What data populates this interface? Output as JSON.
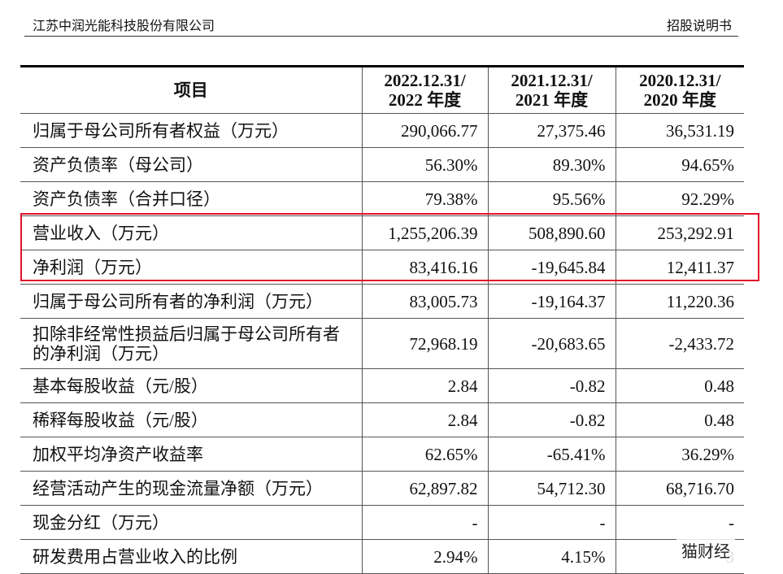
{
  "header": {
    "company": "江苏中润光能科技股份有限公司",
    "doc_type": "招股说明书"
  },
  "table": {
    "columns": [
      [
        "项目"
      ],
      [
        "2022.12.31/",
        "2022 年度"
      ],
      [
        "2021.12.31/",
        "2021 年度"
      ],
      [
        "2020.12.31/",
        "2020 年度"
      ]
    ],
    "rows": [
      [
        "归属于母公司所有者权益（万元）",
        "290,066.77",
        "27,375.46",
        "36,531.19"
      ],
      [
        "资产负债率（母公司）",
        "56.30%",
        "89.30%",
        "94.65%"
      ],
      [
        "资产负债率（合并口径）",
        "79.38%",
        "95.56%",
        "92.29%"
      ],
      [
        "营业收入（万元）",
        "1,255,206.39",
        "508,890.60",
        "253,292.91"
      ],
      [
        "净利润（万元）",
        "83,416.16",
        "-19,645.84",
        "12,411.37"
      ],
      [
        "归属于母公司所有者的净利润（万元）",
        "83,005.73",
        "-19,164.37",
        "11,220.36"
      ],
      [
        "扣除非经常性损益后归属于母公司所有者的净利润（万元）",
        "72,968.19",
        "-20,683.65",
        "-2,433.72"
      ],
      [
        "基本每股收益（元/股）",
        "2.84",
        "-0.82",
        "0.48"
      ],
      [
        "稀释每股收益（元/股）",
        "2.84",
        "-0.82",
        "0.48"
      ],
      [
        "加权平均净资产收益率",
        "62.65%",
        "-65.41%",
        "36.29%"
      ],
      [
        "经营活动产生的现金流量净额（万元）",
        "62,897.82",
        "54,712.30",
        "68,716.70"
      ],
      [
        "现金分红（万元）",
        "-",
        "-",
        "-"
      ],
      [
        "研发费用占营业收入的比例",
        "2.94%",
        "4.15%",
        "3"
      ]
    ]
  },
  "watermark": "猫财经"
}
